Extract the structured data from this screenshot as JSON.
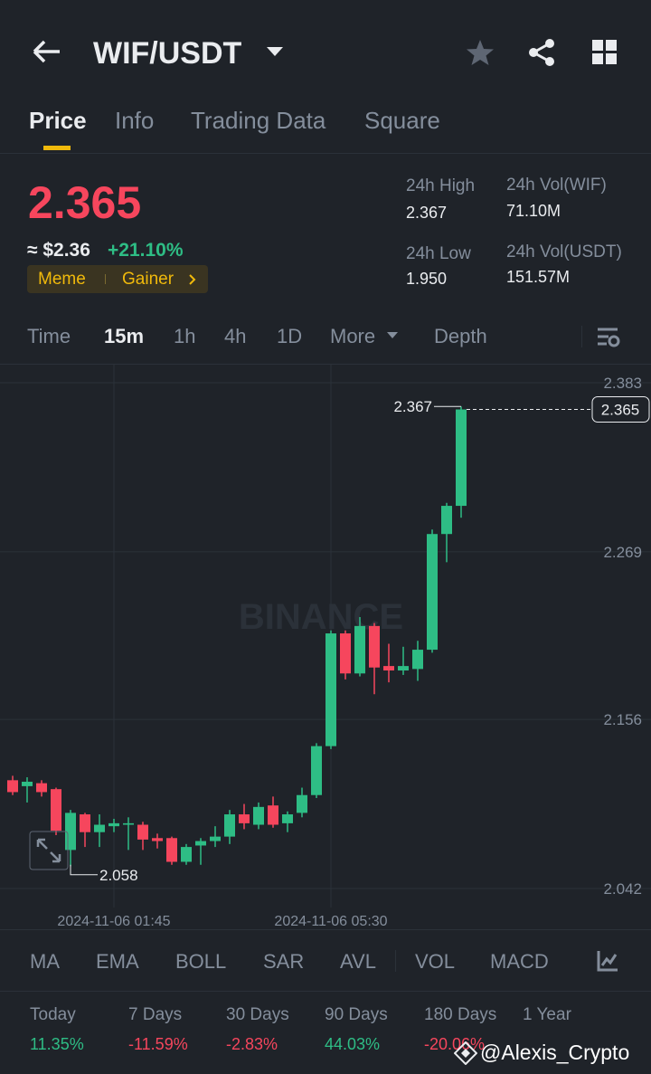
{
  "header": {
    "pair": "WIF/USDT"
  },
  "tabs": [
    "Price",
    "Info",
    "Trading Data",
    "Square"
  ],
  "price": {
    "last": "2.365",
    "fiat": "≈ $2.36",
    "change": "+21.10%",
    "tags": [
      "Meme",
      "Gainer"
    ]
  },
  "stats": [
    {
      "label": "24h High",
      "value": "2.367"
    },
    {
      "label": "24h Vol(WIF)",
      "value": "71.10M"
    },
    {
      "label": "24h Low",
      "value": "1.950"
    },
    {
      "label": "24h Vol(USDT)",
      "value": "151.57M"
    }
  ],
  "intervals": [
    "Time",
    "15m",
    "1h",
    "4h",
    "1D",
    "More",
    "Depth"
  ],
  "chart": {
    "type": "candlestick",
    "watermark": "BINANCE",
    "up_color": "#2ebd85",
    "down_color": "#f6465d",
    "ylim": [
      2.042,
      2.383
    ],
    "yticks": [
      2.383,
      2.269,
      2.156,
      2.042
    ],
    "last_price": 2.365,
    "high_marker": 2.367,
    "low_marker": 2.058,
    "categories": [
      null,
      null,
      null,
      null,
      null,
      null,
      null,
      "2024-11-06 01:45",
      null,
      null,
      null,
      null,
      null,
      null,
      null,
      null,
      null,
      null,
      null,
      null,
      null,
      null,
      "2024-11-06 05:30",
      null,
      null,
      null,
      null,
      null,
      null,
      null,
      null,
      null
    ],
    "candles": [
      {
        "o": 2.115,
        "h": 2.118,
        "l": 2.105,
        "c": 2.107
      },
      {
        "o": 2.111,
        "h": 2.117,
        "l": 2.1,
        "c": 2.114
      },
      {
        "o": 2.113,
        "h": 2.115,
        "l": 2.104,
        "c": 2.107
      },
      {
        "o": 2.109,
        "h": 2.11,
        "l": 2.078,
        "c": 2.081
      },
      {
        "o": 2.068,
        "h": 2.095,
        "l": 2.057,
        "c": 2.093
      },
      {
        "o": 2.092,
        "h": 2.093,
        "l": 2.07,
        "c": 2.08
      },
      {
        "o": 2.08,
        "h": 2.092,
        "l": 2.07,
        "c": 2.085
      },
      {
        "o": 2.084,
        "h": 2.089,
        "l": 2.08,
        "c": 2.086
      },
      {
        "o": 2.085,
        "h": 2.09,
        "l": 2.068,
        "c": 2.086
      },
      {
        "o": 2.085,
        "h": 2.087,
        "l": 2.068,
        "c": 2.075
      },
      {
        "o": 2.076,
        "h": 2.079,
        "l": 2.069,
        "c": 2.074
      },
      {
        "o": 2.076,
        "h": 2.077,
        "l": 2.058,
        "c": 2.06
      },
      {
        "o": 2.06,
        "h": 2.072,
        "l": 2.058,
        "c": 2.07
      },
      {
        "o": 2.071,
        "h": 2.076,
        "l": 2.058,
        "c": 2.074
      },
      {
        "o": 2.074,
        "h": 2.084,
        "l": 2.07,
        "c": 2.077
      },
      {
        "o": 2.077,
        "h": 2.095,
        "l": 2.072,
        "c": 2.092
      },
      {
        "o": 2.092,
        "h": 2.099,
        "l": 2.082,
        "c": 2.086
      },
      {
        "o": 2.085,
        "h": 2.1,
        "l": 2.082,
        "c": 2.097
      },
      {
        "o": 2.098,
        "h": 2.104,
        "l": 2.083,
        "c": 2.085
      },
      {
        "o": 2.086,
        "h": 2.094,
        "l": 2.08,
        "c": 2.092
      },
      {
        "o": 2.093,
        "h": 2.11,
        "l": 2.09,
        "c": 2.105
      },
      {
        "o": 2.105,
        "h": 2.14,
        "l": 2.103,
        "c": 2.138
      },
      {
        "o": 2.138,
        "h": 2.216,
        "l": 2.136,
        "c": 2.214
      },
      {
        "o": 2.214,
        "h": 2.216,
        "l": 2.183,
        "c": 2.187
      },
      {
        "o": 2.187,
        "h": 2.225,
        "l": 2.185,
        "c": 2.219
      },
      {
        "o": 2.219,
        "h": 2.221,
        "l": 2.173,
        "c": 2.191
      },
      {
        "o": 2.192,
        "h": 2.207,
        "l": 2.181,
        "c": 2.189
      },
      {
        "o": 2.189,
        "h": 2.205,
        "l": 2.186,
        "c": 2.192
      },
      {
        "o": 2.19,
        "h": 2.209,
        "l": 2.182,
        "c": 2.203
      },
      {
        "o": 2.203,
        "h": 2.284,
        "l": 2.201,
        "c": 2.281
      },
      {
        "o": 2.281,
        "h": 2.302,
        "l": 2.262,
        "c": 2.3
      },
      {
        "o": 2.3,
        "h": 2.367,
        "l": 2.292,
        "c": 2.365
      }
    ]
  },
  "indicators": [
    "MA",
    "EMA",
    "BOLL",
    "SAR",
    "AVL",
    "VOL",
    "MACD"
  ],
  "performance": [
    {
      "label": "Today",
      "value": "11.35%"
    },
    {
      "label": "7 Days",
      "value": "-11.59%"
    },
    {
      "label": "30 Days",
      "value": "-2.83%"
    },
    {
      "label": "90 Days",
      "value": "44.03%"
    },
    {
      "label": "180 Days",
      "value": "-20.06%"
    },
    {
      "label": "1 Year",
      "value": null
    }
  ],
  "watermark": "@Alexis_Crypto"
}
